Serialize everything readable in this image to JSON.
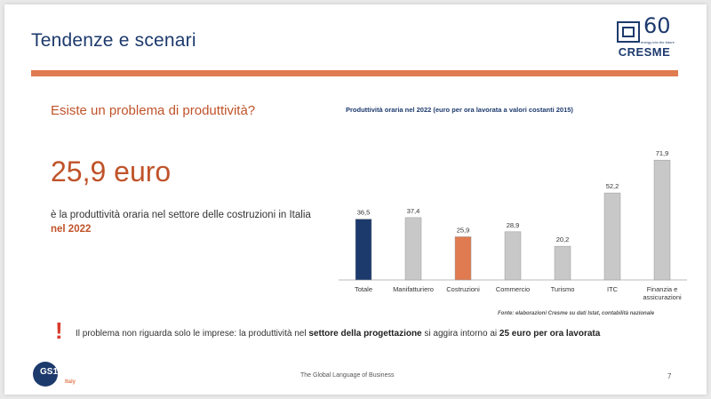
{
  "header": {
    "title": "Tendenze e scenari",
    "logo": {
      "sixty": "60",
      "tagline": "energy into the future",
      "brand": "CRESME"
    }
  },
  "left_panel": {
    "question": "Esiste un problema di produttività?",
    "big_value": "25,9 euro",
    "description_prefix": "è la produttività oraria nel settore delle costruzioni in Italia ",
    "description_highlight": "nel 2022"
  },
  "colors": {
    "accent": "#e07a50",
    "navy": "#1d3a6d",
    "bar_gray": "#c8c8c8",
    "alert_red": "#d93a2b"
  },
  "chart_data": {
    "type": "bar",
    "title": "Produttività oraria nel 2022 (euro per ora lavorata a valori costanti 2015)",
    "categories": [
      "Totale",
      "Manifatturiero",
      "Costruzioni",
      "Commercio",
      "Turismo",
      "ITC",
      "Finanzia e assicurazioni"
    ],
    "value_labels": [
      "36,5",
      "37,4",
      "25,9",
      "28,9",
      "20,2",
      "52,2",
      "71,9"
    ],
    "values": [
      36.5,
      37.4,
      25.9,
      28.9,
      20.2,
      52.2,
      71.9
    ],
    "bar_colors": [
      "#1d3a6d",
      "#c8c8c8",
      "#e07a50",
      "#c8c8c8",
      "#c8c8c8",
      "#c8c8c8",
      "#c8c8c8"
    ],
    "ylim": [
      0,
      80
    ],
    "grid": false,
    "source": "Fonte: elaborazioni Cresme su dati Istat, contabilità nazionale"
  },
  "note": {
    "icon": "exclamation-icon",
    "part1": "Il problema non riguarda solo le imprese: la produttività nel ",
    "bold1": "settore della progettazione",
    "part2": " si aggira intorno ai ",
    "bold2": "25 euro per ora lavorata"
  },
  "footer": {
    "gs1": "GS1",
    "gs1_sub": "Italy",
    "tagline": "The Global Language of Business",
    "page": "7"
  }
}
